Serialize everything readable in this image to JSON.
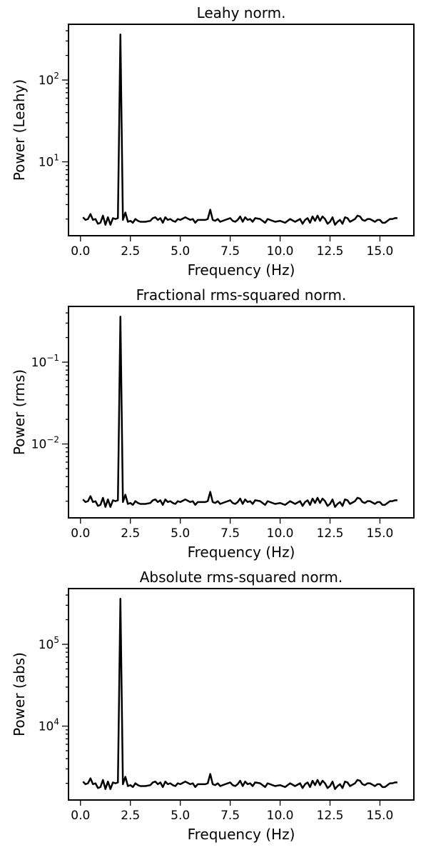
{
  "chart_data": [
    {
      "type": "line",
      "title": "Leahy norm.",
      "xlabel": "Frequency (Hz)",
      "ylabel": "Power (Leahy)",
      "yscale": "log",
      "xlim": [
        -0.6,
        16.7
      ],
      "ylim": [
        1.25,
        480
      ],
      "xticks": [
        "0.0",
        "2.5",
        "5.0",
        "7.5",
        "10.0",
        "12.5",
        "15.0"
      ],
      "yticks": [
        {
          "base": "10",
          "exp": "1",
          "value": 10
        },
        {
          "base": "10",
          "exp": "2",
          "value": 100
        }
      ],
      "grid": false,
      "color": "#000000",
      "x": [
        0.125,
        0.25,
        0.375,
        0.5,
        0.625,
        0.75,
        0.875,
        1.0,
        1.125,
        1.25,
        1.375,
        1.5,
        1.625,
        1.75,
        1.875,
        2.0,
        2.125,
        2.25,
        2.375,
        2.5,
        2.625,
        2.75,
        2.875,
        3.0,
        3.25,
        3.5,
        3.625,
        3.75,
        3.875,
        4.0,
        4.125,
        4.25,
        4.375,
        4.5,
        4.625,
        4.75,
        4.875,
        5.0,
        5.25,
        5.5,
        5.625,
        5.75,
        5.875,
        6.0,
        6.25,
        6.375,
        6.5,
        6.625,
        6.75,
        6.875,
        7.0,
        7.25,
        7.5,
        7.625,
        7.75,
        7.875,
        8.0,
        8.125,
        8.25,
        8.375,
        8.5,
        8.625,
        8.75,
        9.0,
        9.25,
        9.375,
        9.5,
        9.75,
        10.0,
        10.25,
        10.5,
        10.75,
        11.0,
        11.125,
        11.25,
        11.375,
        11.5,
        11.625,
        11.75,
        11.875,
        12.0,
        12.125,
        12.25,
        12.375,
        12.5,
        12.625,
        12.75,
        12.875,
        13.0,
        13.125,
        13.25,
        13.375,
        13.5,
        13.75,
        13.875,
        14.0,
        14.125,
        14.25,
        14.375,
        14.5,
        14.75,
        14.875,
        15.0,
        15.125,
        15.25,
        15.5,
        15.625,
        15.75,
        15.875
      ],
      "y": [
        2.1,
        1.95,
        2.0,
        2.3,
        1.95,
        2.0,
        1.75,
        1.8,
        2.2,
        1.7,
        2.1,
        1.7,
        2.05,
        2.0,
        2.05,
        360,
        1.95,
        2.4,
        1.85,
        1.9,
        1.8,
        2.0,
        1.9,
        1.85,
        1.85,
        1.9,
        2.05,
        2.1,
        1.95,
        2.05,
        1.8,
        2.1,
        1.95,
        2.0,
        1.9,
        1.85,
        2.0,
        1.95,
        2.1,
        1.95,
        2.0,
        1.8,
        1.95,
        1.95,
        1.95,
        2.0,
        2.6,
        1.95,
        1.9,
        2.0,
        1.85,
        1.95,
        2.05,
        1.9,
        1.85,
        1.95,
        2.15,
        1.85,
        2.1,
        1.95,
        2.0,
        1.85,
        2.05,
        2.0,
        1.8,
        2.0,
        1.95,
        1.85,
        1.9,
        1.8,
        2.0,
        1.85,
        2.0,
        1.75,
        1.95,
        2.05,
        1.8,
        2.15,
        1.9,
        2.2,
        1.9,
        2.15,
        2.0,
        1.75,
        1.85,
        2.1,
        1.7,
        1.85,
        1.95,
        1.75,
        2.1,
        2.05,
        1.85,
        2.0,
        2.2,
        2.15,
        1.95,
        1.9,
        2.0,
        2.0,
        1.85,
        1.95,
        1.95,
        1.8,
        1.8,
        2.0,
        2.0,
        2.05,
        2.05
      ]
    },
    {
      "type": "line",
      "title": "Fractional rms-squared norm.",
      "xlabel": "Frequency (Hz)",
      "ylabel": "Power (rms)",
      "yscale": "log",
      "xlim": [
        -0.6,
        16.7
      ],
      "ylim": [
        0.00125,
        0.48
      ],
      "xticks": [
        "0.0",
        "2.5",
        "5.0",
        "7.5",
        "10.0",
        "12.5",
        "15.0"
      ],
      "yticks": [
        {
          "base": "10",
          "exp": "−2",
          "value": 0.01
        },
        {
          "base": "10",
          "exp": "−1",
          "value": 0.1
        }
      ],
      "grid": false,
      "color": "#000000",
      "x": [
        0.125,
        0.25,
        0.375,
        0.5,
        0.625,
        0.75,
        0.875,
        1.0,
        1.125,
        1.25,
        1.375,
        1.5,
        1.625,
        1.75,
        1.875,
        2.0,
        2.125,
        2.25,
        2.375,
        2.5,
        2.625,
        2.75,
        2.875,
        3.0,
        3.25,
        3.5,
        3.625,
        3.75,
        3.875,
        4.0,
        4.125,
        4.25,
        4.375,
        4.5,
        4.625,
        4.75,
        4.875,
        5.0,
        5.25,
        5.5,
        5.625,
        5.75,
        5.875,
        6.0,
        6.25,
        6.375,
        6.5,
        6.625,
        6.75,
        6.875,
        7.0,
        7.25,
        7.5,
        7.625,
        7.75,
        7.875,
        8.0,
        8.125,
        8.25,
        8.375,
        8.5,
        8.625,
        8.75,
        9.0,
        9.25,
        9.375,
        9.5,
        9.75,
        10.0,
        10.25,
        10.5,
        10.75,
        11.0,
        11.125,
        11.25,
        11.375,
        11.5,
        11.625,
        11.75,
        11.875,
        12.0,
        12.125,
        12.25,
        12.375,
        12.5,
        12.625,
        12.75,
        12.875,
        13.0,
        13.125,
        13.25,
        13.375,
        13.5,
        13.75,
        13.875,
        14.0,
        14.125,
        14.25,
        14.375,
        14.5,
        14.75,
        14.875,
        15.0,
        15.125,
        15.25,
        15.5,
        15.625,
        15.75,
        15.875
      ],
      "y": [
        0.0021,
        0.00195,
        0.002,
        0.0023,
        0.00195,
        0.002,
        0.00175,
        0.0018,
        0.0022,
        0.0017,
        0.0021,
        0.0017,
        0.00205,
        0.002,
        0.00205,
        0.36,
        0.00195,
        0.0024,
        0.00185,
        0.0019,
        0.0018,
        0.002,
        0.0019,
        0.00185,
        0.00185,
        0.0019,
        0.00205,
        0.0021,
        0.00195,
        0.00205,
        0.0018,
        0.0021,
        0.00195,
        0.002,
        0.0019,
        0.00185,
        0.002,
        0.00195,
        0.0021,
        0.00195,
        0.002,
        0.0018,
        0.00195,
        0.00195,
        0.00195,
        0.002,
        0.0026,
        0.00195,
        0.0019,
        0.002,
        0.00185,
        0.00195,
        0.00205,
        0.0019,
        0.00185,
        0.00195,
        0.00215,
        0.00185,
        0.0021,
        0.00195,
        0.002,
        0.00185,
        0.00205,
        0.002,
        0.0018,
        0.002,
        0.00195,
        0.00185,
        0.0019,
        0.0018,
        0.002,
        0.00185,
        0.002,
        0.00175,
        0.00195,
        0.00205,
        0.0018,
        0.00215,
        0.0019,
        0.0022,
        0.0019,
        0.00215,
        0.002,
        0.00175,
        0.00185,
        0.0021,
        0.0017,
        0.00185,
        0.00195,
        0.00175,
        0.0021,
        0.00205,
        0.00185,
        0.002,
        0.0022,
        0.00215,
        0.00195,
        0.0019,
        0.002,
        0.002,
        0.00185,
        0.00195,
        0.00195,
        0.0018,
        0.0018,
        0.002,
        0.002,
        0.00205,
        0.00205
      ]
    },
    {
      "type": "line",
      "title": "Absolute rms-squared norm.",
      "xlabel": "Frequency (Hz)",
      "ylabel": "Power (abs)",
      "yscale": "log",
      "xlim": [
        -0.6,
        16.7
      ],
      "ylim": [
        1250,
        480000
      ],
      "xticks": [
        "0.0",
        "2.5",
        "5.0",
        "7.5",
        "10.0",
        "12.5",
        "15.0"
      ],
      "yticks": [
        {
          "base": "10",
          "exp": "4",
          "value": 10000
        },
        {
          "base": "10",
          "exp": "5",
          "value": 100000
        }
      ],
      "grid": false,
      "color": "#000000",
      "x": [
        0.125,
        0.25,
        0.375,
        0.5,
        0.625,
        0.75,
        0.875,
        1.0,
        1.125,
        1.25,
        1.375,
        1.5,
        1.625,
        1.75,
        1.875,
        2.0,
        2.125,
        2.25,
        2.375,
        2.5,
        2.625,
        2.75,
        2.875,
        3.0,
        3.25,
        3.5,
        3.625,
        3.75,
        3.875,
        4.0,
        4.125,
        4.25,
        4.375,
        4.5,
        4.625,
        4.75,
        4.875,
        5.0,
        5.25,
        5.5,
        5.625,
        5.75,
        5.875,
        6.0,
        6.25,
        6.375,
        6.5,
        6.625,
        6.75,
        6.875,
        7.0,
        7.25,
        7.5,
        7.625,
        7.75,
        7.875,
        8.0,
        8.125,
        8.25,
        8.375,
        8.5,
        8.625,
        8.75,
        9.0,
        9.25,
        9.375,
        9.5,
        9.75,
        10.0,
        10.25,
        10.5,
        10.75,
        11.0,
        11.125,
        11.25,
        11.375,
        11.5,
        11.625,
        11.75,
        11.875,
        12.0,
        12.125,
        12.25,
        12.375,
        12.5,
        12.625,
        12.75,
        12.875,
        13.0,
        13.125,
        13.25,
        13.375,
        13.5,
        13.75,
        13.875,
        14.0,
        14.125,
        14.25,
        14.375,
        14.5,
        14.75,
        14.875,
        15.0,
        15.125,
        15.25,
        15.5,
        15.625,
        15.75,
        15.875
      ],
      "y": [
        2100,
        1950,
        2000,
        2300,
        1950,
        2000,
        1750,
        1800,
        2200,
        1700,
        2100,
        1700,
        2050,
        2000,
        2050,
        360000,
        1950,
        2400,
        1850,
        1900,
        1800,
        2000,
        1900,
        1850,
        1850,
        1900,
        2050,
        2100,
        1950,
        2050,
        1800,
        2100,
        1950,
        2000,
        1900,
        1850,
        2000,
        1950,
        2100,
        1950,
        2000,
        1800,
        1950,
        1950,
        1950,
        2000,
        2600,
        1950,
        1900,
        2000,
        1850,
        1950,
        2050,
        1900,
        1850,
        1950,
        2150,
        1850,
        2100,
        1950,
        2000,
        1850,
        2050,
        2000,
        1800,
        2000,
        1950,
        1850,
        1900,
        1800,
        2000,
        1850,
        2000,
        1750,
        1950,
        2050,
        1800,
        2150,
        1900,
        2200,
        1900,
        2150,
        2000,
        1750,
        1850,
        2100,
        1700,
        1850,
        1950,
        1750,
        2100,
        2050,
        1850,
        2000,
        2200,
        2150,
        1950,
        1900,
        2000,
        2000,
        1850,
        1950,
        1950,
        1800,
        1800,
        2000,
        2000,
        2050,
        2050
      ]
    }
  ]
}
